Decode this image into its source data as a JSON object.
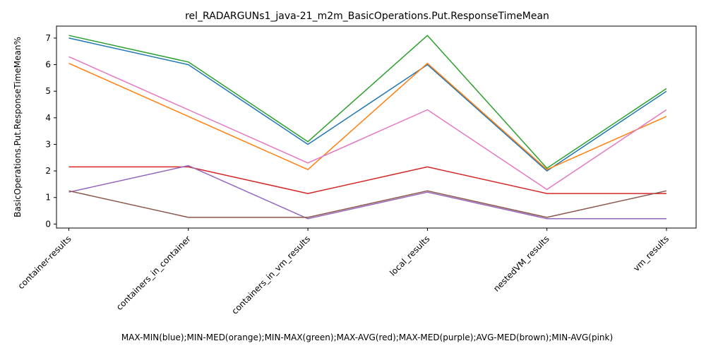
{
  "chart_data": {
    "type": "line",
    "title": "rel_RADARGUNs1_java-21_m2m_BasicOperations.Put.ResponseTimeMean",
    "xlabel": "MAX-MIN(blue);MIN-MED(orange);MIN-MAX(green);MAX-AVG(red);MAX-MED(purple);AVG-MED(brown);MIN-AVG(pink)",
    "ylabel": "BasicOperations.Put.ResponseTimeMean%",
    "categories": [
      "container-results",
      "containers_in_container",
      "containers_in_vm_results",
      "local_results",
      "nestedVM_results",
      "vm_results"
    ],
    "yticks": [
      "0",
      "1",
      "2",
      "3",
      "4",
      "5",
      "6",
      "7"
    ],
    "ylim": [
      -0.15,
      7.45
    ],
    "grid": false,
    "series": [
      {
        "color": "#1f77b4",
        "values": [
          7.0,
          6.0,
          3.0,
          6.0,
          2.0,
          5.0
        ]
      },
      {
        "color": "#ff7f0e",
        "values": [
          6.05,
          4.05,
          2.05,
          6.05,
          2.05,
          4.05
        ]
      },
      {
        "color": "#2ca02c",
        "values": [
          7.1,
          6.1,
          3.1,
          7.1,
          2.1,
          5.1
        ]
      },
      {
        "color": "#d62728",
        "values": [
          2.15,
          2.15,
          1.15,
          2.15,
          1.15,
          1.15
        ]
      },
      {
        "color": "#9467bd",
        "values": [
          1.2,
          2.2,
          0.2,
          1.2,
          0.2,
          0.2
        ]
      },
      {
        "color": "#8c564b",
        "values": [
          1.25,
          0.25,
          0.25,
          1.25,
          0.25,
          1.25
        ]
      },
      {
        "color": "#e377c2",
        "values": [
          6.3,
          4.3,
          2.3,
          4.3,
          1.3,
          4.3
        ]
      }
    ]
  }
}
